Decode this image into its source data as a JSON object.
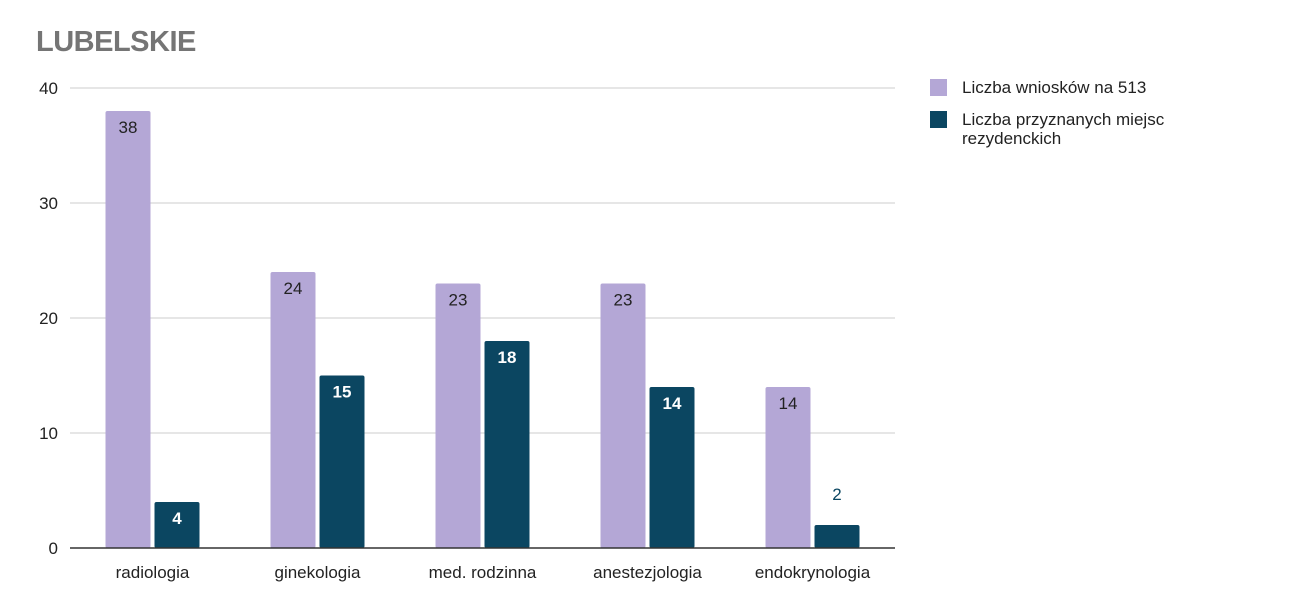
{
  "chart_data": {
    "type": "bar",
    "title": "LUBELSKIE",
    "categories": [
      "radiologia",
      "ginekologia",
      "med. rodzinna",
      "anestezjologia",
      "endokrynologia"
    ],
    "series": [
      {
        "name": "Liczba wniosków na 513",
        "values": [
          38,
          24,
          23,
          23,
          14
        ],
        "color": "#b4a7d6"
      },
      {
        "name": "Liczba przyznanych miejsc rezydenckich",
        "values": [
          4,
          15,
          18,
          14,
          2
        ],
        "color": "#0b4661"
      }
    ],
    "ylim": [
      0,
      40
    ],
    "yticks": [
      "0",
      "10",
      "20",
      "30",
      "40"
    ],
    "grid": true,
    "legend_position": "right",
    "data_labels": true
  }
}
